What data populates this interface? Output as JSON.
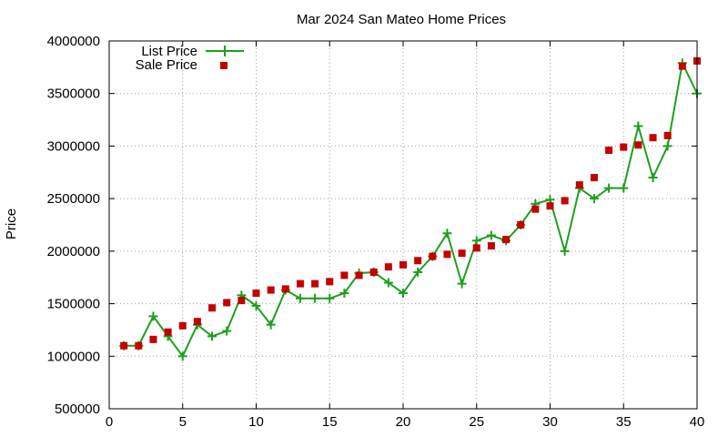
{
  "chart_data": {
    "type": "line",
    "title": "Mar 2024 San Mateo Home Prices",
    "xlabel": "",
    "ylabel": "Price",
    "xlim": [
      0,
      40
    ],
    "ylim": [
      500000,
      4000000
    ],
    "xticks": [
      0,
      5,
      10,
      15,
      20,
      25,
      30,
      35,
      40
    ],
    "yticks": [
      500000,
      1000000,
      1500000,
      2000000,
      2500000,
      3000000,
      3500000,
      4000000
    ],
    "xtick_labels": [
      "0",
      "5",
      "10",
      "15",
      "20",
      "25",
      "30",
      "35",
      "40"
    ],
    "ytick_labels": [
      "500000",
      "1000000",
      "1500000",
      "2000000",
      "2500000",
      "3000000",
      "3500000",
      "4000000"
    ],
    "grid": true,
    "legend_position": "top-left",
    "x": [
      1,
      2,
      3,
      4,
      5,
      6,
      7,
      8,
      9,
      10,
      11,
      12,
      13,
      14,
      15,
      16,
      17,
      18,
      19,
      20,
      21,
      22,
      23,
      24,
      25,
      26,
      27,
      28,
      29,
      30,
      31,
      32,
      33,
      34,
      35,
      36,
      37,
      38,
      39,
      40
    ],
    "series": [
      {
        "name": "List Price",
        "style": "line-with-plus-markers",
        "color": "#1ea01e",
        "values": [
          1100000,
          1100000,
          1380000,
          1190000,
          1000000,
          1300000,
          1190000,
          1240000,
          1580000,
          1480000,
          1300000,
          1630000,
          1550000,
          1550000,
          1550000,
          1600000,
          1790000,
          1800000,
          1700000,
          1600000,
          1800000,
          1950000,
          2170000,
          1690000,
          2100000,
          2150000,
          2100000,
          2250000,
          2450000,
          2490000,
          2000000,
          2600000,
          2500000,
          2600000,
          2600000,
          3190000,
          2700000,
          3000000,
          3790000,
          3500000
        ]
      },
      {
        "name": "Sale Price",
        "style": "square-markers",
        "color": "#c40000",
        "values": [
          1100000,
          1100000,
          1160000,
          1230000,
          1290000,
          1330000,
          1460000,
          1510000,
          1530000,
          1600000,
          1630000,
          1640000,
          1690000,
          1690000,
          1710000,
          1770000,
          1770000,
          1800000,
          1850000,
          1870000,
          1910000,
          1950000,
          1970000,
          1980000,
          2030000,
          2050000,
          2110000,
          2250000,
          2400000,
          2430000,
          2480000,
          2630000,
          2700000,
          2960000,
          2990000,
          3010000,
          3080000,
          3100000,
          3760000,
          3810000
        ]
      }
    ]
  }
}
